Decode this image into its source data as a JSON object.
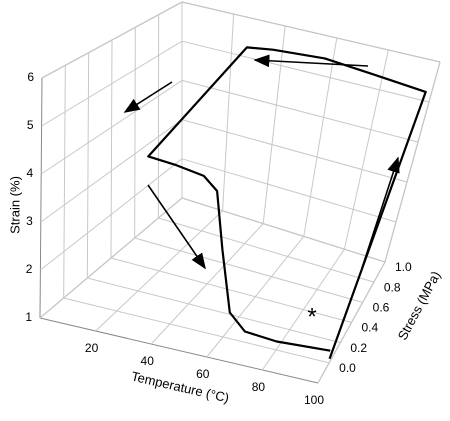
{
  "chart_data": {
    "type": "line3d",
    "x_label": "Temperature (°C)",
    "y_label": "Stress (MPa)",
    "z_label": "Strain (%)",
    "xlim": [
      0,
      100
    ],
    "xticks": [
      20,
      40,
      60,
      80,
      100
    ],
    "ylim": [
      -0.2,
      1.0
    ],
    "yticks": [
      {
        "value": 0,
        "label": "0.0"
      },
      0.2,
      0.4,
      0.6,
      0.8,
      {
        "value": 1,
        "label": "1.0"
      }
    ],
    "zlim": [
      1,
      6
    ],
    "zticks": [
      1,
      2,
      3,
      4,
      5,
      6
    ],
    "grid": true,
    "color": "#000000",
    "annotations": [
      "*"
    ],
    "series": [
      {
        "x": [
          100,
          100,
          80,
          60,
          40,
          30,
          30,
          40,
          50,
          55,
          58,
          62,
          68,
          80,
          100
        ],
        "y": [
          0.0,
          0.9,
          0.9,
          0.9,
          0.9,
          0.9,
          0.0,
          0.0,
          0.0,
          0.0,
          0.0,
          0.0,
          0.0,
          0.0,
          0.0
        ],
        "z": [
          1.1,
          5.5,
          5.6,
          5.7,
          5.6,
          5.5,
          4.6,
          4.6,
          4.55,
          4.3,
          3.0,
          1.6,
          1.25,
          1.2,
          1.3
        ]
      }
    ]
  }
}
